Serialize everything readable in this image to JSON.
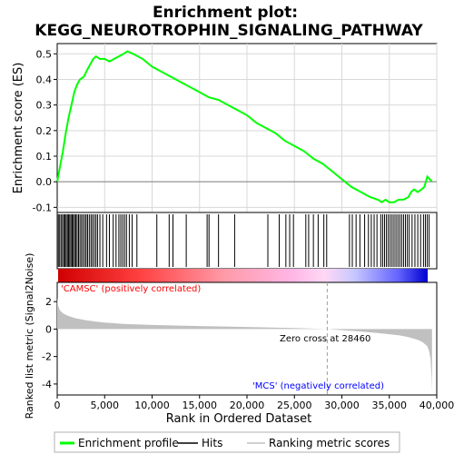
{
  "chart_data": {
    "type": "line",
    "title_lines": [
      "Enrichment plot:",
      "KEGG_NEUROTROPHIN_SIGNALING_PATHWAY"
    ],
    "xlabel": "Rank in Ordered Dataset",
    "x_ticks": [
      0,
      5000,
      10000,
      15000,
      20000,
      25000,
      30000,
      35000,
      40000
    ],
    "x_tick_labels": [
      "0",
      "5,000",
      "10,000",
      "15,000",
      "20,000",
      "25,000",
      "30,000",
      "35,000",
      "40,000"
    ],
    "xlim": [
      0,
      40000
    ],
    "n_genes": 39500,
    "es_panel": {
      "ylabel": "Enrichment score (ES)",
      "ylim": [
        -0.12,
        0.54
      ],
      "y_ticks": [
        -0.1,
        0.0,
        0.1,
        0.2,
        0.3,
        0.4,
        0.5
      ],
      "y_tick_labels": [
        "-0.1",
        "0.0",
        "0.1",
        "0.2",
        "0.3",
        "0.4",
        "0.5"
      ],
      "grid": true,
      "series": [
        {
          "color": "#00ff00",
          "x": [
            0,
            300,
            600,
            900,
            1200,
            1500,
            1800,
            2100,
            2400,
            2800,
            3200,
            3500,
            3800,
            4100,
            4500,
            5000,
            5500,
            6000,
            6500,
            7000,
            7400,
            8000,
            9000,
            10000,
            11000,
            12000,
            13000,
            14000,
            15000,
            16000,
            17000,
            18000,
            19000,
            20000,
            21000,
            22000,
            23000,
            24000,
            25000,
            26000,
            27000,
            28000,
            29000,
            30000,
            31000,
            32000,
            33000,
            33800,
            34200,
            34600,
            35000,
            35500,
            36000,
            36500,
            37000,
            37300,
            37600,
            38000,
            38400,
            38700,
            39000,
            39500
          ],
          "y": [
            0.0,
            0.06,
            0.12,
            0.19,
            0.25,
            0.3,
            0.35,
            0.38,
            0.4,
            0.41,
            0.44,
            0.46,
            0.48,
            0.49,
            0.48,
            0.48,
            0.47,
            0.48,
            0.49,
            0.5,
            0.51,
            0.5,
            0.48,
            0.45,
            0.43,
            0.41,
            0.39,
            0.37,
            0.35,
            0.33,
            0.32,
            0.3,
            0.28,
            0.26,
            0.23,
            0.21,
            0.19,
            0.16,
            0.14,
            0.12,
            0.09,
            0.07,
            0.04,
            0.01,
            -0.02,
            -0.04,
            -0.06,
            -0.07,
            -0.08,
            -0.07,
            -0.08,
            -0.08,
            -0.07,
            -0.07,
            -0.06,
            -0.04,
            -0.03,
            -0.04,
            -0.03,
            -0.02,
            0.02,
            0.0
          ]
        }
      ]
    },
    "hits": [
      120,
      260,
      410,
      560,
      700,
      820,
      950,
      1080,
      1200,
      1320,
      1450,
      1580,
      1700,
      1830,
      1960,
      2100,
      2250,
      2400,
      2560,
      2720,
      2900,
      3050,
      3200,
      3380,
      3560,
      3720,
      3900,
      4080,
      4250,
      4500,
      4800,
      5200,
      5500,
      5900,
      6200,
      6500,
      6700,
      6900,
      7100,
      7300,
      7600,
      7900,
      8400,
      10500,
      11800,
      12200,
      13600,
      15800,
      16000,
      17000,
      18700,
      22200,
      23400,
      24100,
      24500,
      24900,
      26200,
      26500,
      27000,
      27500,
      28100,
      28400,
      30800,
      31100,
      31500,
      31900,
      32400,
      32800,
      33100,
      33400,
      33700,
      34100,
      34300,
      34500,
      34700,
      34900,
      35100,
      35300,
      35500,
      35700,
      35900,
      36100,
      36300,
      36500,
      36700,
      36900,
      37100,
      37400,
      37700,
      38000,
      38300,
      38600,
      38800,
      39000,
      39200
    ],
    "rank_metric_panel": {
      "ylabel": "Ranked list metric (Signal2Noise)",
      "ylim": [
        -4.8,
        3.4
      ],
      "y_ticks": [
        -4,
        -2,
        0,
        2
      ],
      "y_tick_labels": [
        "-4",
        "-2",
        "0",
        "2"
      ],
      "fill_color": "#c0c0c0",
      "x": [
        0,
        100,
        300,
        600,
        1000,
        1500,
        2000,
        3000,
        4000,
        5000,
        7000,
        10000,
        15000,
        20000,
        25000,
        28460,
        30000,
        32000,
        34000,
        36000,
        37000,
        38000,
        38500,
        39000,
        39200,
        39350,
        39450,
        39500
      ],
      "y": [
        2.3,
        1.7,
        1.35,
        1.15,
        1.0,
        0.88,
        0.78,
        0.65,
        0.55,
        0.47,
        0.38,
        0.3,
        0.22,
        0.15,
        0.08,
        0.0,
        -0.08,
        -0.18,
        -0.3,
        -0.45,
        -0.58,
        -0.78,
        -0.95,
        -1.25,
        -1.6,
        -2.2,
        -3.5,
        -4.6
      ]
    },
    "zero_cross_label": "Zero cross at 28460",
    "zero_cross": 28460,
    "pos_label": "'CAMSC' (positively correlated)",
    "neg_label": "'MCS' (negatively correlated)",
    "pos_color": "#ff0000",
    "neg_color": "#0000ff",
    "legend": [
      {
        "label": "Enrichment profile",
        "color": "#00ff00"
      },
      {
        "label": "Hits",
        "color": "#000000"
      },
      {
        "label": "Ranking metric scores",
        "color": "#c0c0c0"
      }
    ]
  }
}
